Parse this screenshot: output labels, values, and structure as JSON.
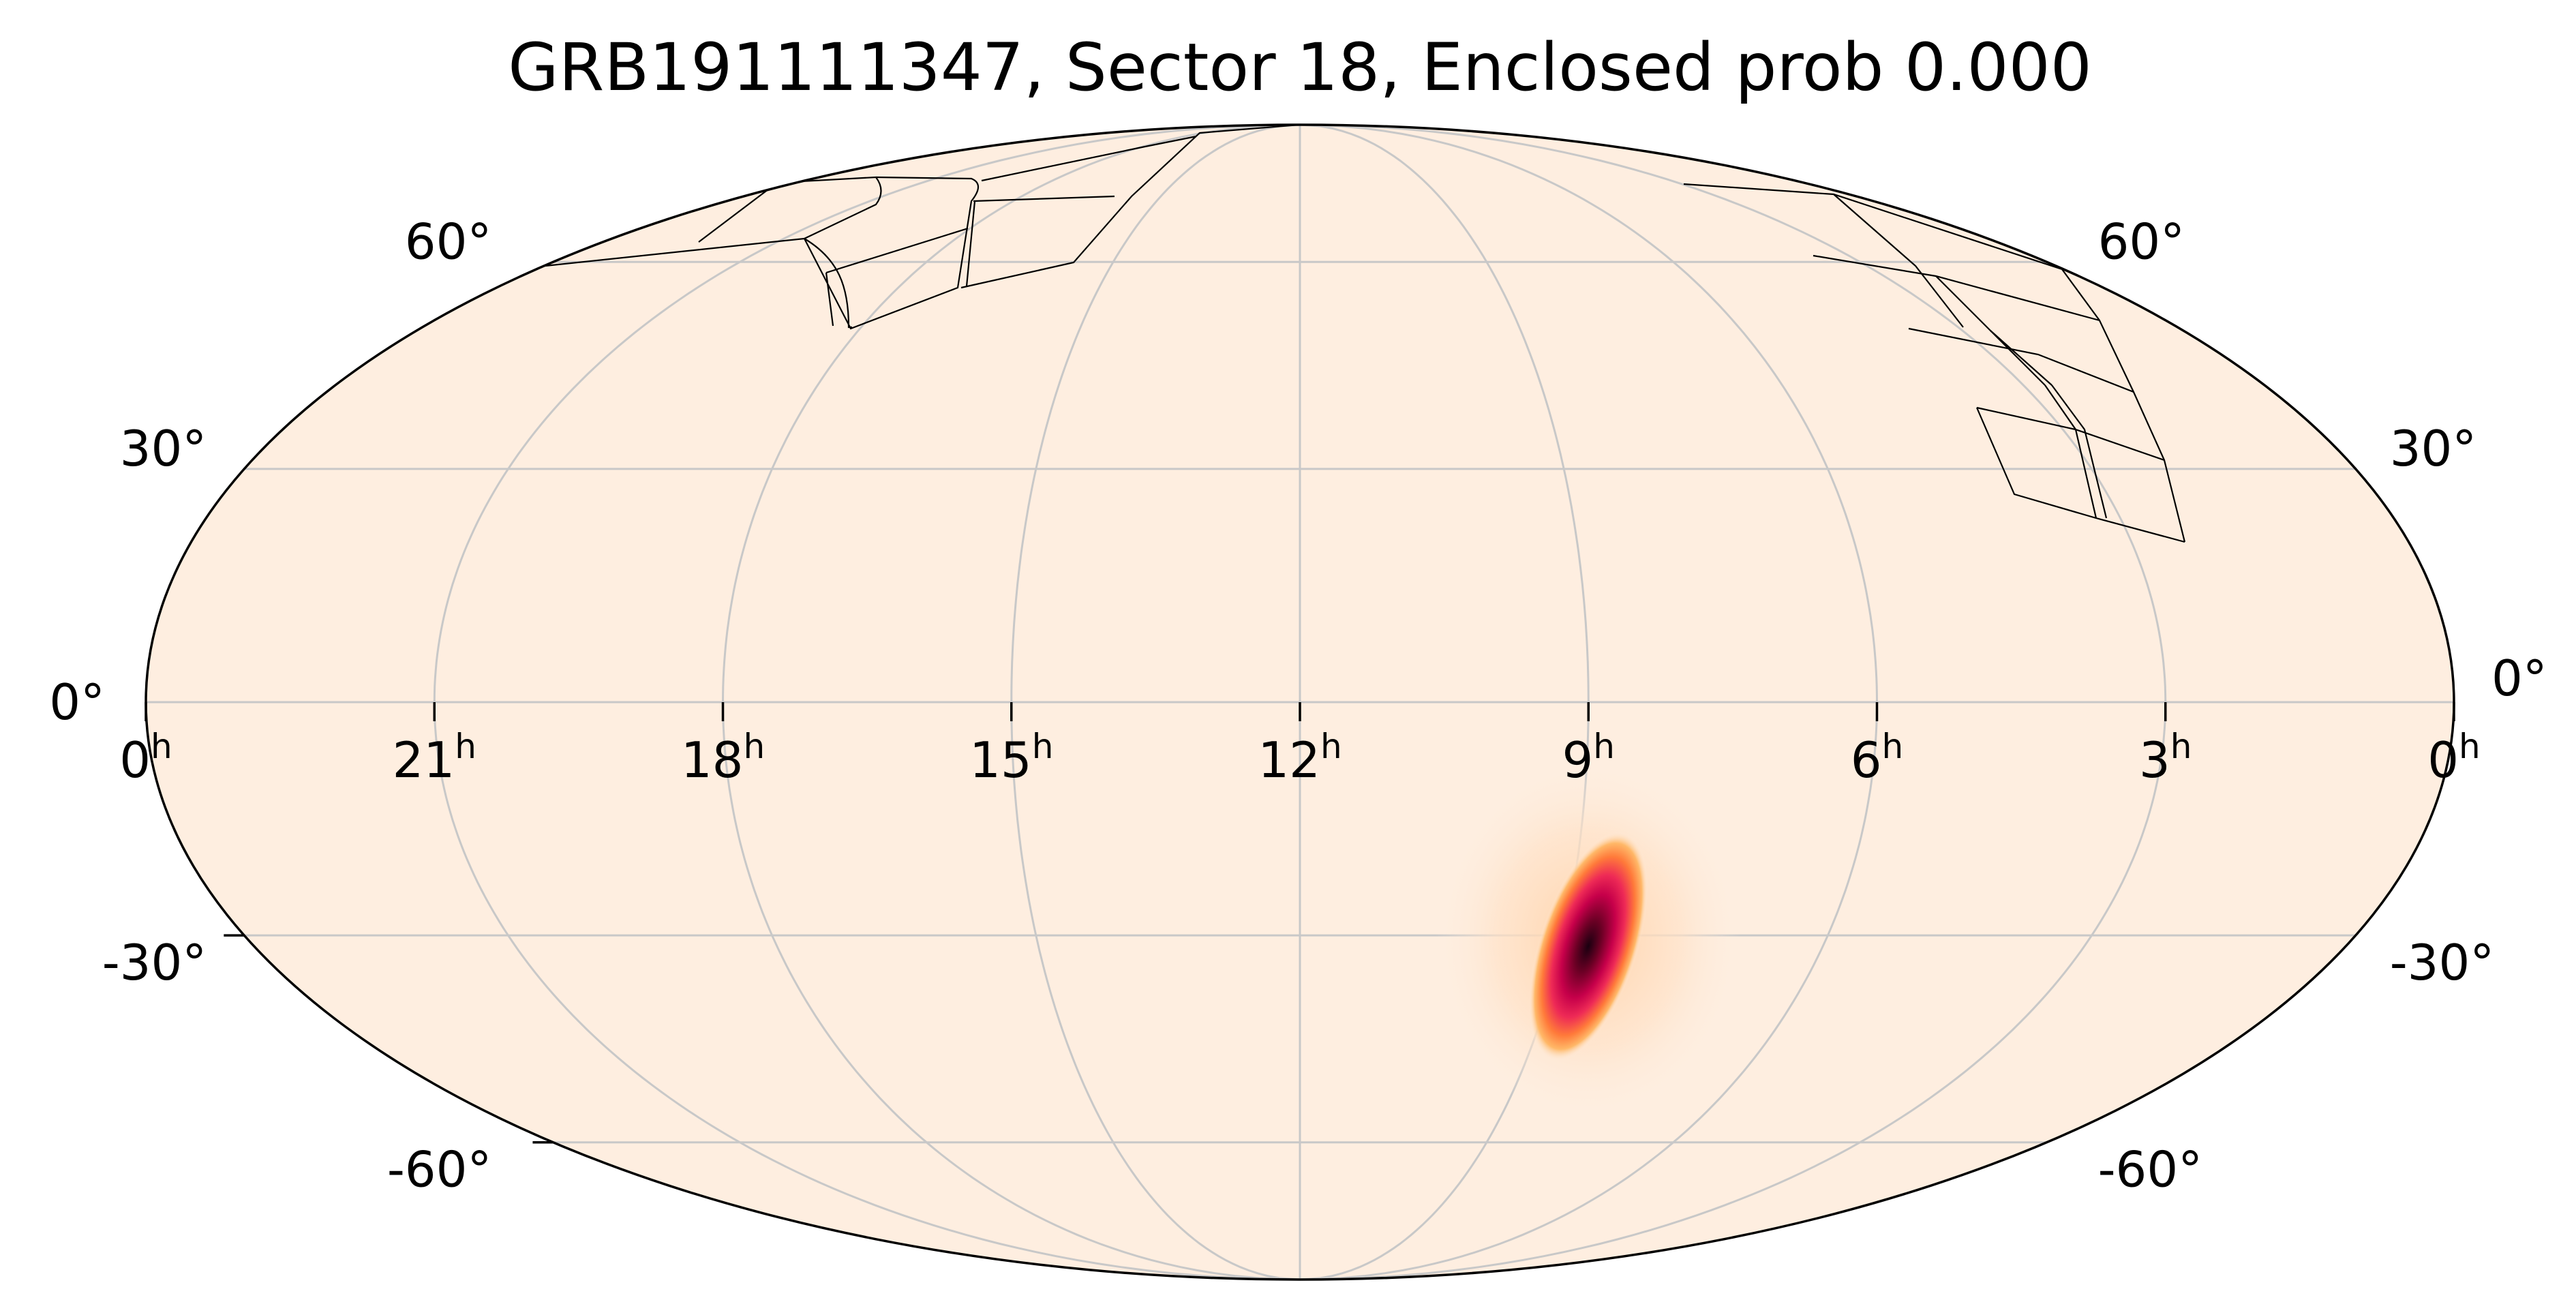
{
  "figure": {
    "title": "GRB191111347, Sector 18, Enclosed prob 0.000",
    "projection": "mollweide",
    "colors": {
      "background": "#feeee0",
      "grid": "#c8c8c8",
      "outline": "#000000",
      "footprints": "#000000",
      "heatmap_peak": "#1a0010",
      "heatmap_mid": "#e8115a",
      "heatmap_edge": "#ffb060"
    }
  },
  "ra_ticks": [
    {
      "hours": 0,
      "label": "0",
      "unit": "h",
      "side": "left"
    },
    {
      "hours": 21,
      "label": "21",
      "unit": "h"
    },
    {
      "hours": 18,
      "label": "18",
      "unit": "h"
    },
    {
      "hours": 15,
      "label": "15",
      "unit": "h"
    },
    {
      "hours": 12,
      "label": "12",
      "unit": "h"
    },
    {
      "hours": 9,
      "label": "9",
      "unit": "h"
    },
    {
      "hours": 6,
      "label": "6",
      "unit": "h"
    },
    {
      "hours": 3,
      "label": "3",
      "unit": "h"
    },
    {
      "hours": 0,
      "label": "0",
      "unit": "h",
      "side": "right"
    }
  ],
  "dec_ticks_left": [
    {
      "dec": 60,
      "label": "60°"
    },
    {
      "dec": 30,
      "label": "30°"
    },
    {
      "dec": 0,
      "label": "0°"
    },
    {
      "dec": -30,
      "label": "-30°"
    },
    {
      "dec": -60,
      "label": "-60°"
    }
  ],
  "dec_ticks_right": [
    {
      "dec": 60,
      "label": "60°"
    },
    {
      "dec": 30,
      "label": "30°"
    },
    {
      "dec": 0,
      "label": "0°"
    },
    {
      "dec": -30,
      "label": "-30°"
    },
    {
      "dec": -60,
      "label": "-60°"
    }
  ],
  "localization": {
    "ra_deg": 132,
    "dec_deg": -33,
    "enclosed_prob": 0.0
  }
}
